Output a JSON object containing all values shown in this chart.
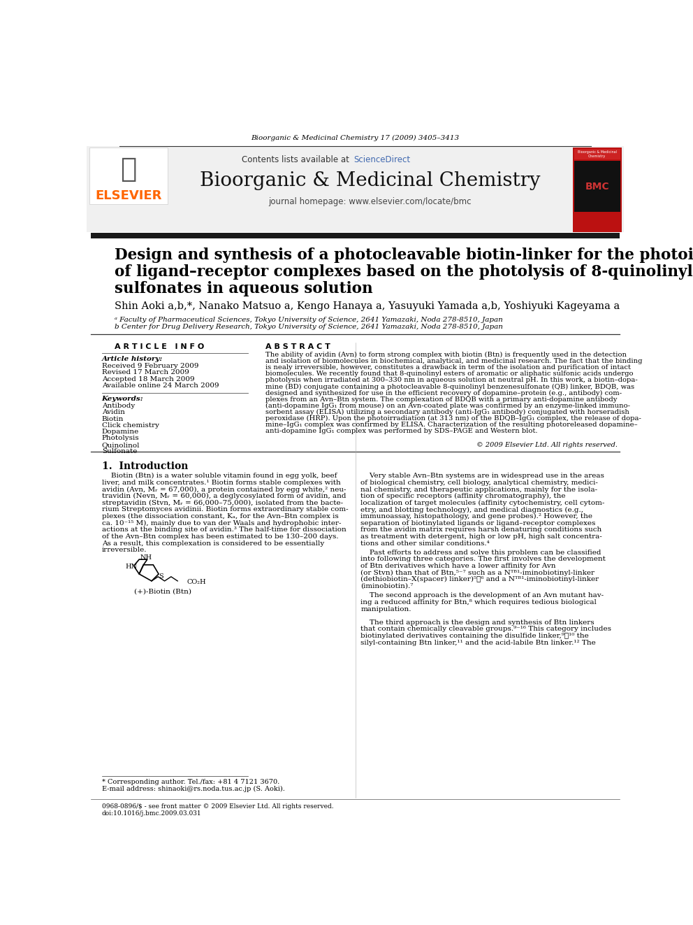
{
  "journal_header_text": "Bioorganic & Medicinal Chemistry 17 (2009) 3405–3413",
  "contents_text": "Contents lists available at ScienceDirect",
  "sciencedirect_text": "ScienceDirect",
  "journal_name": "Bioorganic & Medicinal Chemistry",
  "homepage_text": "journal homepage: www.elsevier.com/locate/bmc",
  "elsevier_text": "ELSEVIER",
  "article_title_line1": "Design and synthesis of a photocleavable biotin-linker for the photoisolation",
  "article_title_line2": "of ligand–receptor complexes based on the photolysis of 8-quinolinyl",
  "article_title_line3": "sulfonates in aqueous solution",
  "authors": "Shin Aoki a,b,*, Nanako Matsuo a, Kengo Hanaya a, Yasuyuki Yamada a,b, Yoshiyuki Kageyama a",
  "affil1": "ᵃ Faculty of Pharmaceutical Sciences, Tokyo University of Science, 2641 Yamazaki, Noda 278-8510, Japan",
  "affil2": "b Center for Drug Delivery Research, Tokyo University of Science, 2641 Yamazaki, Noda 278-8510, Japan",
  "article_info_header": "A R T I C L E   I N F O",
  "abstract_header": "A B S T R A C T",
  "article_history_header": "Article history:",
  "received": "Received 9 February 2009",
  "revised": "Revised 17 March 2009",
  "accepted": "Accepted 18 March 2009",
  "available": "Available online 24 March 2009",
  "keywords_header": "Keywords:",
  "keywords": [
    "Antibody",
    "Avidin",
    "Biotin",
    "Click chemistry",
    "Dopamine",
    "Photolysis",
    "Quinolinol",
    "Sulfonate"
  ],
  "copyright": "© 2009 Elsevier Ltd. All rights reserved.",
  "intro_header": "1.  Introduction",
  "footnote1": "* Corresponding author. Tel./fax: +81 4 7121 3670.",
  "footnote2": "E-mail address: shinaoki@rs.noda.tus.ac.jp (S. Aoki).",
  "footer_line1": "0968-0896/$ - see front matter © 2009 Elsevier Ltd. All rights reserved.",
  "footer_line2": "doi:10.1016/j.bmc.2009.03.031",
  "background_color": "#ffffff",
  "elsevier_color": "#ff6600",
  "sciencedirect_color": "#4169b0",
  "thick_bar_color": "#1a1a1a"
}
